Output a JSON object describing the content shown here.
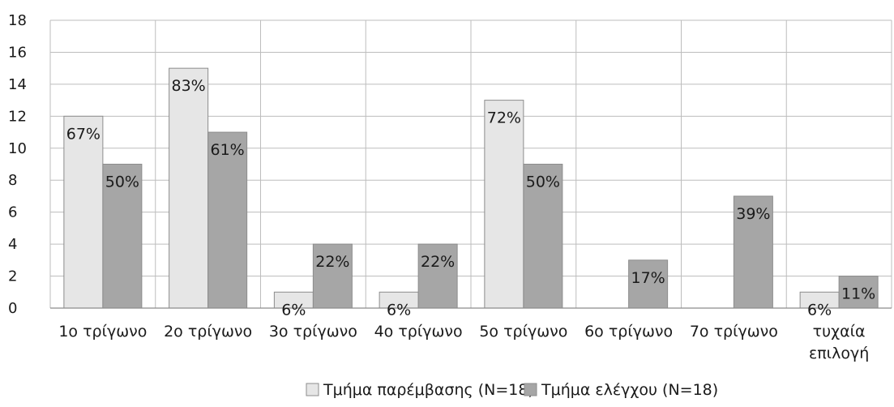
{
  "chart_data": {
    "type": "bar",
    "title": "",
    "xlabel": "",
    "ylabel": "",
    "ylim": [
      0,
      18
    ],
    "yticks": [
      0,
      2,
      4,
      6,
      8,
      10,
      12,
      14,
      16,
      18
    ],
    "grid": true,
    "legend_position": "bottom",
    "categories": [
      [
        "1ο τρίγωνο"
      ],
      [
        "2ο τρίγωνο"
      ],
      [
        "3ο τρίγωνο"
      ],
      [
        "4ο τρίγωνο"
      ],
      [
        "5ο τρίγωνο"
      ],
      [
        "6ο τρίγωνο"
      ],
      [
        "7ο τρίγωνο"
      ],
      [
        "τυχαία",
        "επιλογή"
      ]
    ],
    "series": [
      {
        "name": "Τμήμα παρέμβασης (N=18)",
        "color": "#e6e6e6",
        "values": [
          12,
          15,
          1,
          1,
          13,
          0,
          0,
          1
        ],
        "labels": [
          "67%",
          "83%",
          "6%",
          "6%",
          "72%",
          "",
          "",
          "6%"
        ]
      },
      {
        "name": "Τμήμα ελέγχου (N=18)",
        "color": "#a6a6a6",
        "values": [
          9,
          11,
          4,
          4,
          9,
          3,
          7,
          2
        ],
        "labels": [
          "50%",
          "61%",
          "22%",
          "22%",
          "50%",
          "17%",
          "39%",
          "11%"
        ]
      }
    ]
  }
}
